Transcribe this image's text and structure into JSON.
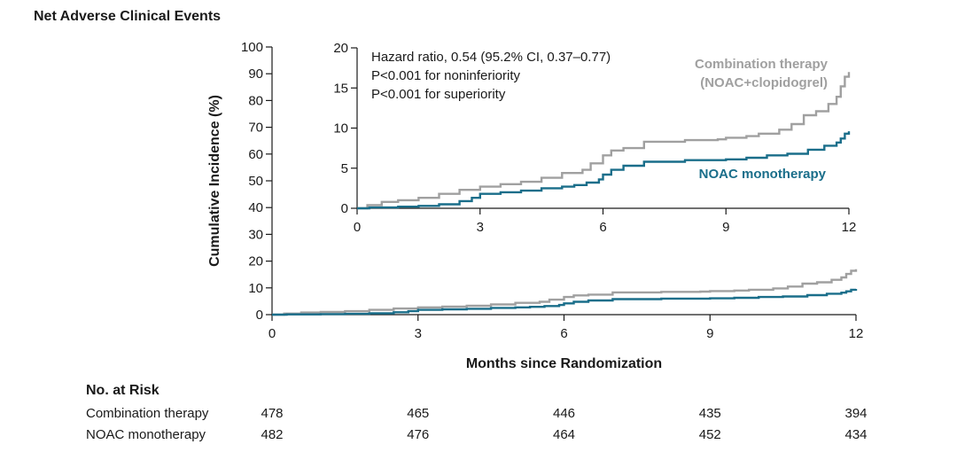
{
  "figure_title": "Net Adverse Clinical Events",
  "chart_data": [
    {
      "type": "line",
      "panel": "main",
      "xlabel": "Months since Randomization",
      "ylabel": "Cumulative Incidence (%)",
      "xlim": [
        0,
        12
      ],
      "ylim": [
        0,
        100
      ],
      "xticks": [
        0,
        3,
        6,
        9,
        12
      ],
      "yticks": [
        0,
        10,
        20,
        30,
        40,
        50,
        60,
        70,
        80,
        90,
        100
      ],
      "grid": false,
      "series": [
        {
          "name": "Combination therapy (NOAC+clopidogrel)",
          "color": "#a0a0a0",
          "x": [
            0,
            0.25,
            0.6,
            1.0,
            1.5,
            2.0,
            2.5,
            3.0,
            3.5,
            4.0,
            4.5,
            5.0,
            5.5,
            5.7,
            6.0,
            6.2,
            6.5,
            7.0,
            8.0,
            8.8,
            9.0,
            9.5,
            9.8,
            10.3,
            10.6,
            10.9,
            11.2,
            11.5,
            11.7,
            11.8,
            11.9,
            12.0
          ],
          "y": [
            0,
            0.4,
            0.8,
            1.0,
            1.3,
            1.8,
            2.3,
            2.7,
            3.0,
            3.3,
            3.8,
            4.4,
            4.8,
            5.6,
            6.6,
            7.2,
            7.5,
            8.3,
            8.5,
            8.6,
            8.8,
            9.0,
            9.3,
            9.8,
            10.5,
            11.6,
            12.1,
            13.0,
            13.9,
            15.2,
            16.4,
            17.0
          ]
        },
        {
          "name": "NOAC monotherapy",
          "color": "#1a6e8a",
          "x": [
            0,
            0.3,
            1.0,
            1.5,
            2.0,
            2.5,
            2.8,
            3.0,
            3.5,
            4.0,
            4.5,
            5.0,
            5.3,
            5.6,
            5.9,
            6.0,
            6.2,
            6.5,
            7.0,
            8.0,
            9.0,
            9.5,
            10.0,
            10.5,
            11.0,
            11.4,
            11.7,
            11.8,
            11.9,
            12.0
          ],
          "y": [
            0,
            0.1,
            0.2,
            0.3,
            0.5,
            0.9,
            1.3,
            1.8,
            2.0,
            2.2,
            2.5,
            2.7,
            2.9,
            3.2,
            3.6,
            4.2,
            4.8,
            5.3,
            5.8,
            6.0,
            6.1,
            6.3,
            6.6,
            6.8,
            7.3,
            7.8,
            8.2,
            8.7,
            9.3,
            9.6
          ]
        }
      ]
    },
    {
      "type": "line",
      "panel": "inset",
      "xlim": [
        0,
        12
      ],
      "ylim": [
        0,
        20
      ],
      "xticks": [
        0,
        3,
        6,
        9,
        12
      ],
      "yticks": [
        0,
        5,
        10,
        15,
        20
      ],
      "grid": false,
      "annotation": [
        "Hazard ratio, 0.54 (95.2% CI, 0.37–0.77)",
        "P<0.001 for noninferiority",
        "P<0.001 for superiority"
      ],
      "series_labels": [
        {
          "lines": [
            "Combination therapy",
            "(NOAC+clopidogrel)"
          ],
          "color": "#a0a0a0"
        },
        {
          "lines": [
            "NOAC monotherapy"
          ],
          "color": "#1a6e8a"
        }
      ]
    }
  ],
  "risk_table": {
    "title": "No. at Risk",
    "months": [
      0,
      3,
      6,
      9,
      12
    ],
    "rows": [
      {
        "name": "Combination therapy",
        "values": [
          "478",
          "465",
          "446",
          "435",
          "394"
        ]
      },
      {
        "name": "NOAC monotherapy",
        "values": [
          "482",
          "476",
          "464",
          "452",
          "434"
        ]
      }
    ]
  }
}
